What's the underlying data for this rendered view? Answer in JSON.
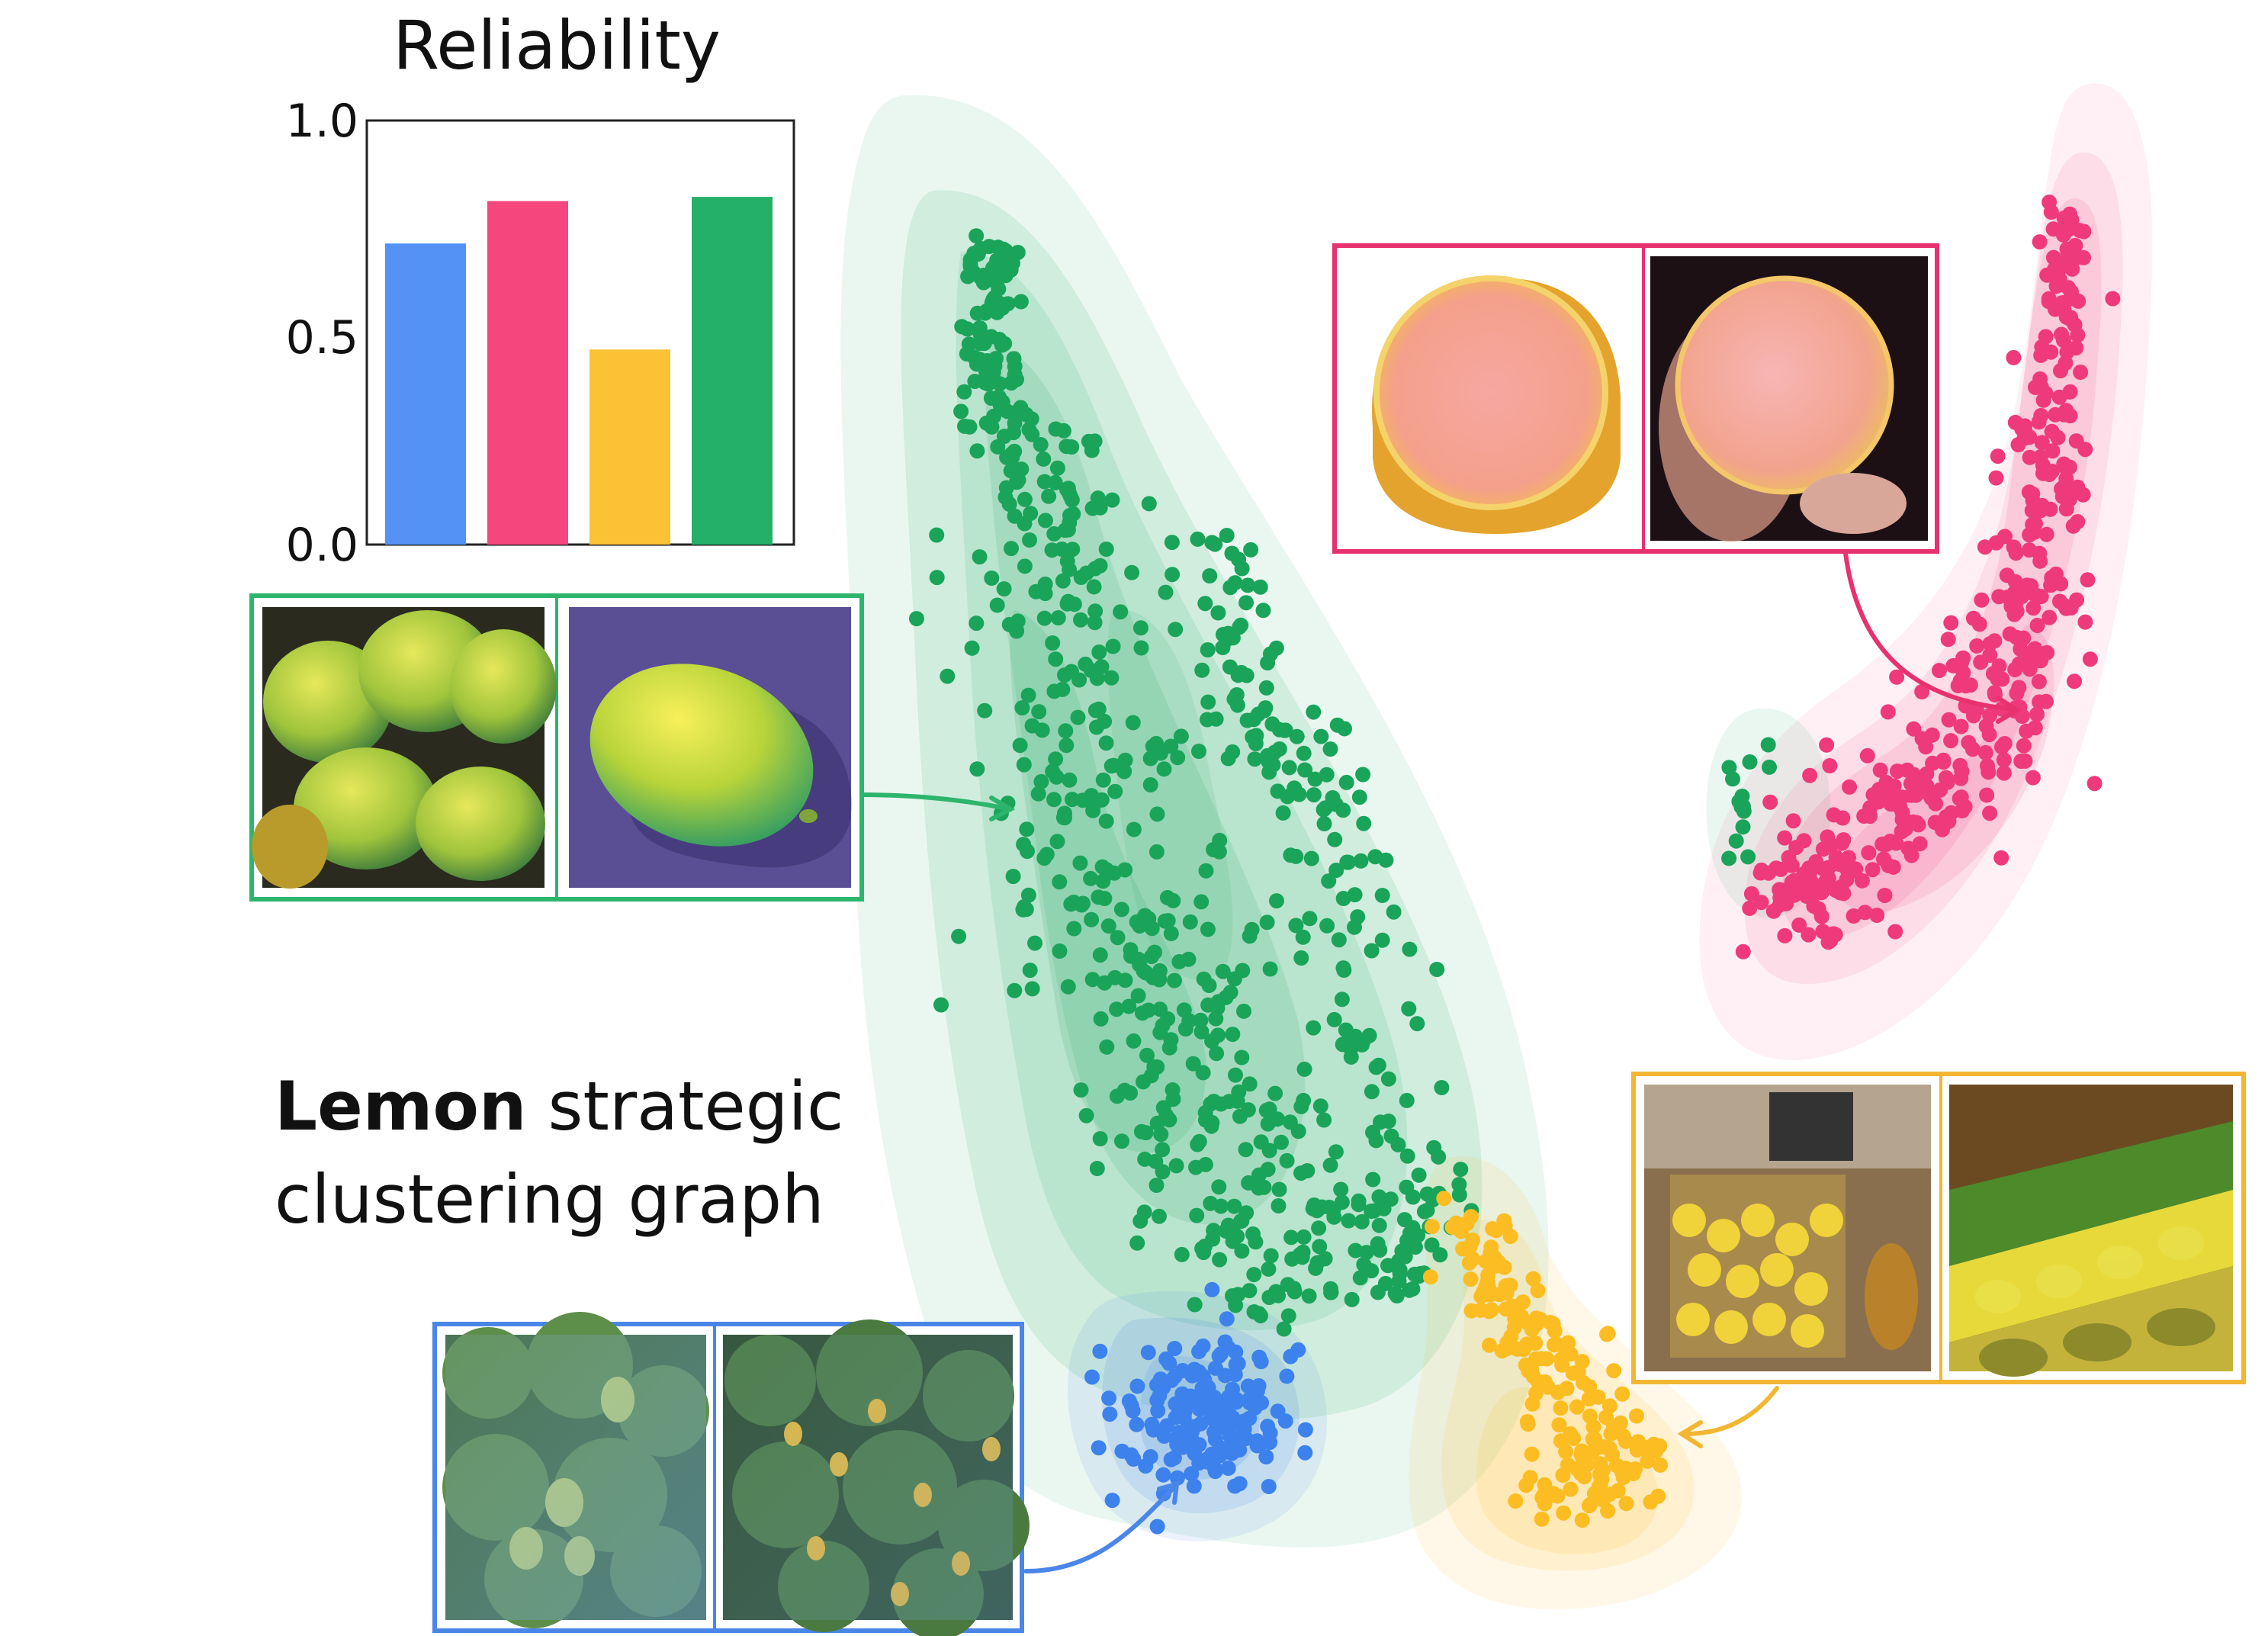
{
  "chart_data": [
    {
      "type": "bar",
      "title": "Reliability",
      "categories": [
        "",
        "",
        "",
        ""
      ],
      "values": [
        0.71,
        0.81,
        0.46,
        0.82
      ],
      "colors": [
        "#5493f5",
        "#f5467e",
        "#fbc235",
        "#25b06a"
      ],
      "ylim": [
        0,
        1.0
      ],
      "yticks": [
        "1.0",
        "0.5",
        "0.0"
      ],
      "xlabel": "",
      "ylabel": ""
    },
    {
      "type": "scatter",
      "series": [
        {
          "cluster": "green",
          "color": "#1aa45a"
        },
        {
          "cluster": "pink",
          "color": "#ee3a7a"
        },
        {
          "cluster": "yellow",
          "color": "#fbbd22"
        },
        {
          "cluster": "blue",
          "color": "#3d82ec"
        }
      ]
    }
  ],
  "caption": {
    "bold": "Lemon",
    "rest_line1": " strategic",
    "line2": "clustering graph"
  },
  "image_panels": [
    {
      "name": "green-cluster-examples",
      "color": "#2db56e"
    },
    {
      "name": "pink-cluster-examples",
      "color": "#e8316f"
    },
    {
      "name": "yellow-cluster-examples",
      "color": "#f3b633"
    },
    {
      "name": "blue-cluster-examples",
      "color": "#4a86e8"
    }
  ]
}
